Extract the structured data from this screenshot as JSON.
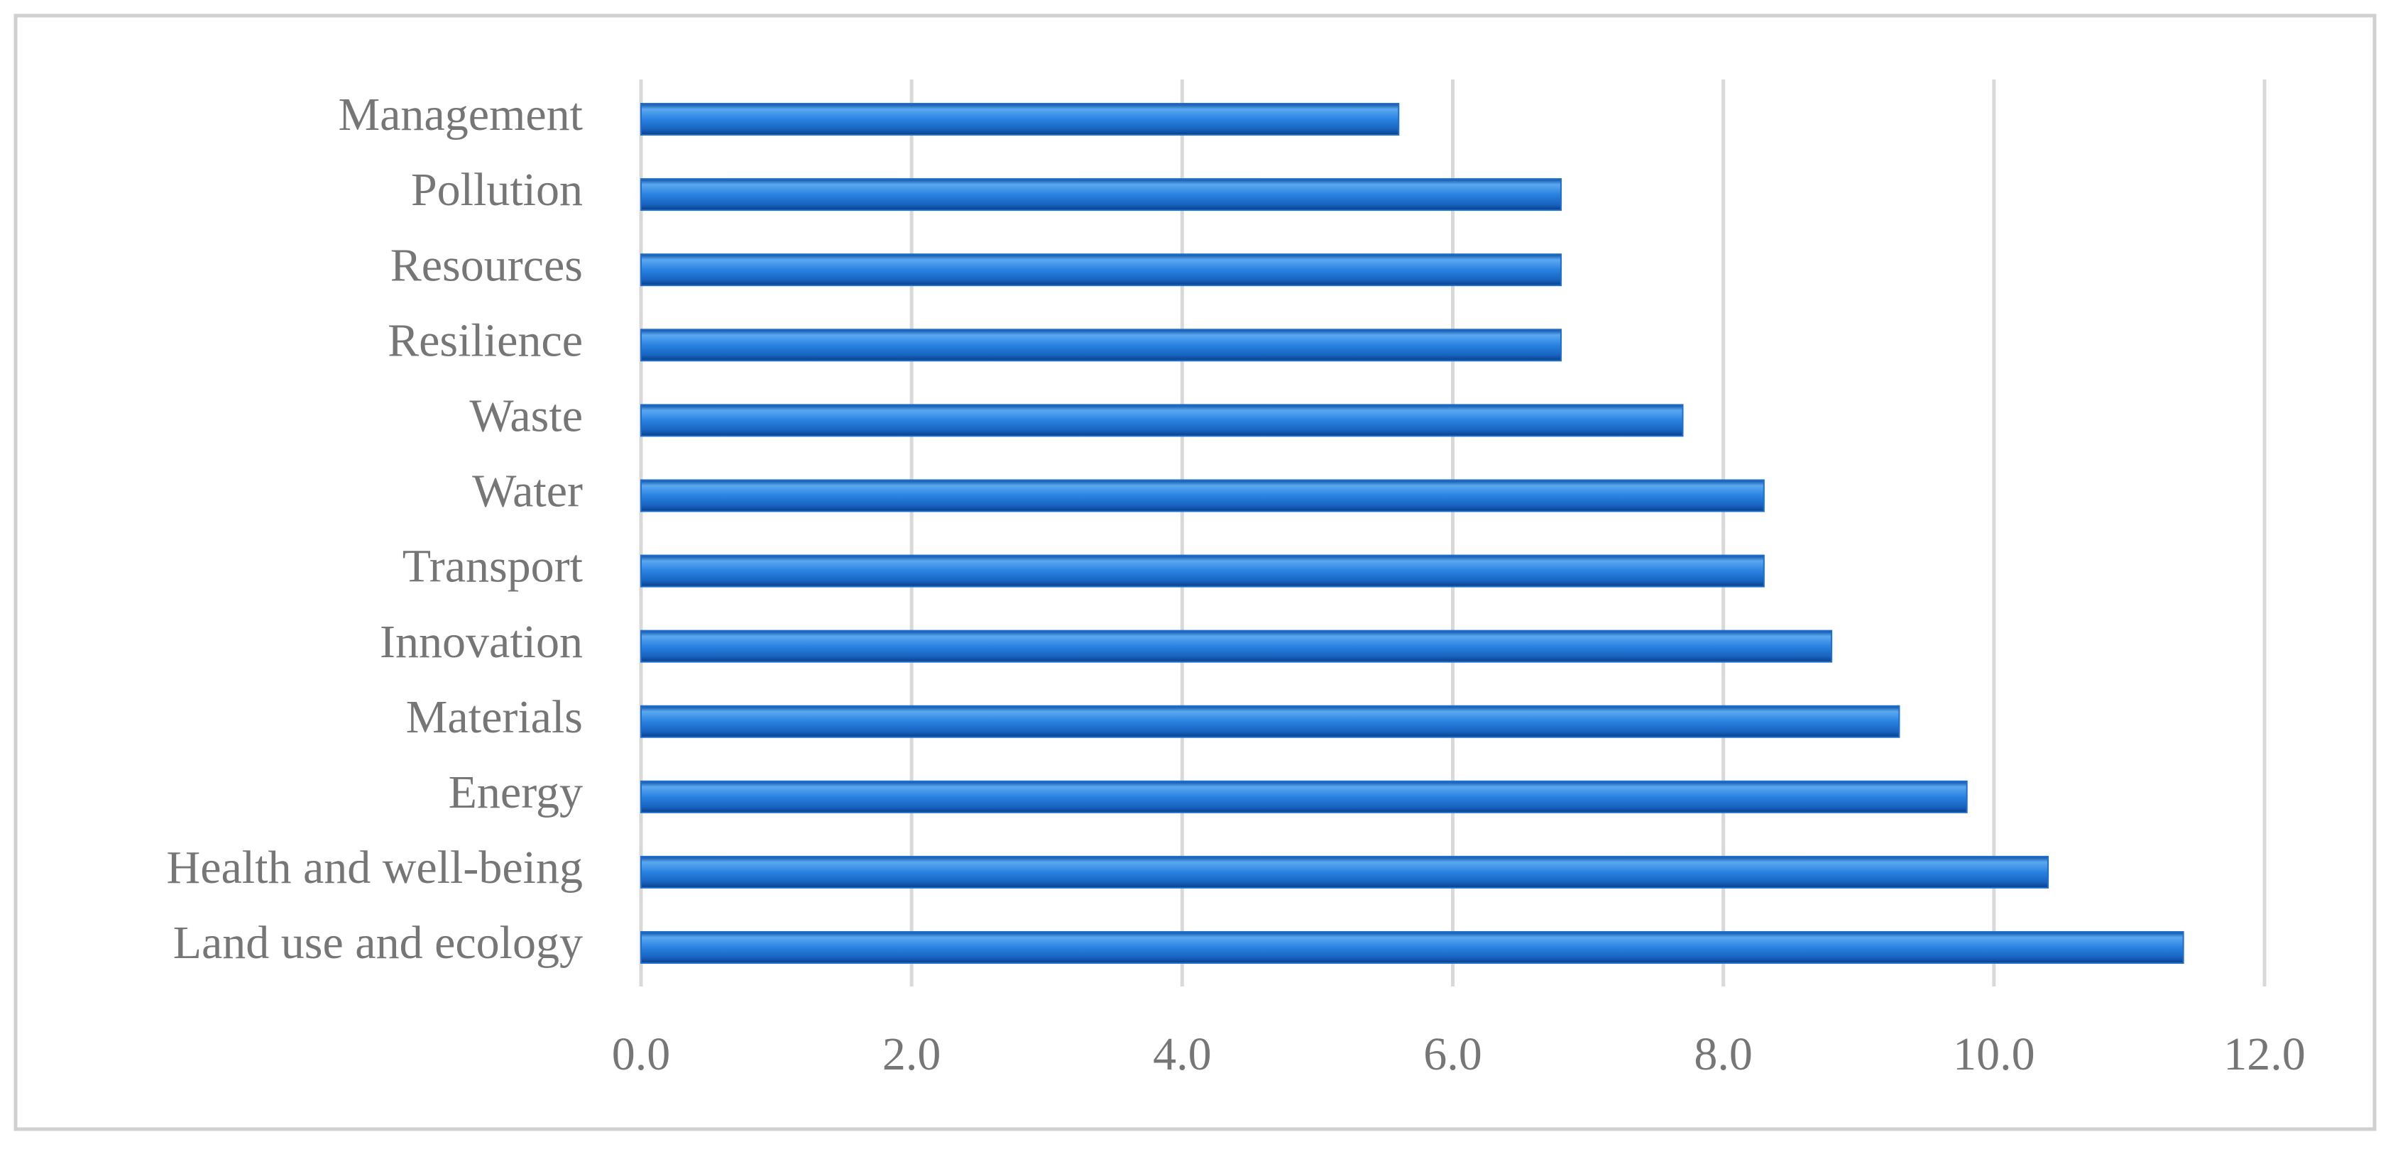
{
  "chart_data": {
    "type": "bar",
    "orientation": "horizontal",
    "categories": [
      "Management",
      "Pollution",
      "Resources",
      "Resilience",
      "Waste",
      "Water",
      "Transport",
      "Innovation",
      "Materials",
      "Energy",
      "Health and well-being",
      "Land use and ecology"
    ],
    "values": [
      5.6,
      6.8,
      6.8,
      6.8,
      7.7,
      8.3,
      8.3,
      8.8,
      9.3,
      9.8,
      10.4,
      11.4
    ],
    "color": "#1f6fd1",
    "xlim": [
      0,
      12
    ],
    "xticks": [
      {
        "value": 0,
        "label": "0.0"
      },
      {
        "value": 2,
        "label": "2.0"
      },
      {
        "value": 4,
        "label": "4.0"
      },
      {
        "value": 6,
        "label": "6.0"
      },
      {
        "value": 8,
        "label": "8.0"
      },
      {
        "value": 10,
        "label": "10.0"
      },
      {
        "value": 12,
        "label": "12.0"
      }
    ],
    "grid": true
  }
}
